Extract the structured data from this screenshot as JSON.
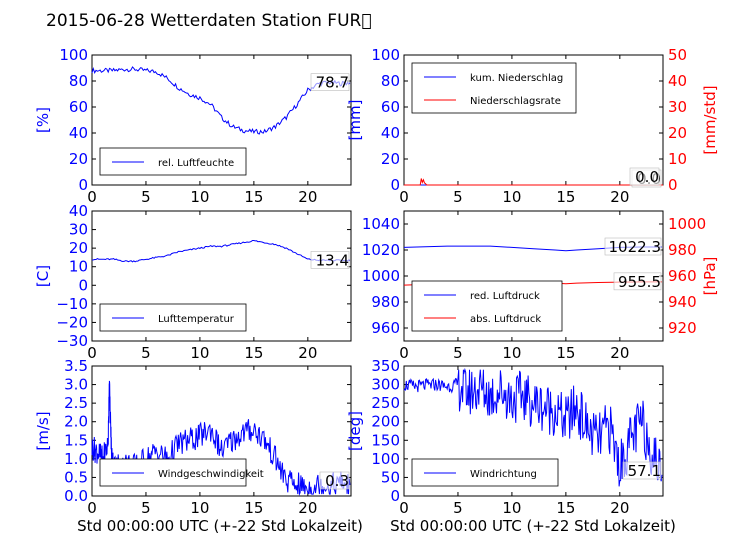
{
  "figure": {
    "title": "2015-06-28 Wetterdaten Station FUR\u0000"
  },
  "chart_data": [
    {
      "id": "humidity",
      "type": "line",
      "ylabel": "[%]",
      "xlim": [
        0,
        24
      ],
      "ylim": [
        0,
        100
      ],
      "xticks": [
        "0",
        "5",
        "10",
        "15",
        "20"
      ],
      "yticks": [
        "0",
        "20",
        "40",
        "60",
        "80",
        "100"
      ],
      "legend": {
        "position": "lower-left",
        "entries": [
          "rel. Luftfeuchte"
        ]
      },
      "annotation": "78.7",
      "series": [
        {
          "name": "rel. Luftfeuchte",
          "color": "#0000ff",
          "x": [
            0,
            1,
            2,
            3,
            4,
            5,
            6,
            7,
            8,
            9,
            10,
            11,
            12,
            13,
            14,
            15,
            16,
            17,
            18,
            19,
            20,
            21,
            22,
            23,
            23.9
          ],
          "y": [
            88,
            88,
            88,
            89,
            89,
            88,
            87,
            82,
            75,
            70,
            67,
            62,
            52,
            45,
            42,
            41,
            41,
            45,
            52,
            62,
            73,
            78,
            79,
            78,
            78.7
          ]
        }
      ]
    },
    {
      "id": "precipitation",
      "type": "line",
      "ylabel": "[mm]",
      "ylabel_right": "[mm/std]",
      "xlim": [
        0,
        24
      ],
      "ylim": [
        0,
        100
      ],
      "ylim_right": [
        0,
        50
      ],
      "xticks": [
        "0",
        "5",
        "10",
        "15",
        "20"
      ],
      "yticks": [
        "0",
        "20",
        "40",
        "60",
        "80",
        "100"
      ],
      "yticks_right": [
        "0",
        "10",
        "20",
        "30",
        "40",
        "50"
      ],
      "legend": {
        "position": "upper-left",
        "entries": [
          "kum. Niederschlag",
          "Niederschlagsrate"
        ]
      },
      "annotations": [
        "0.0",
        "0.0"
      ],
      "series": [
        {
          "name": "kum. Niederschlag",
          "color": "#0000ff",
          "axis": "left",
          "x": [
            0,
            24
          ],
          "y": [
            0,
            0
          ]
        },
        {
          "name": "Niederschlagsrate",
          "color": "#ff0000",
          "axis": "right",
          "x": [
            0,
            1.5,
            1.6,
            1.7,
            1.8,
            1.9,
            2.0,
            2.1,
            24
          ],
          "y": [
            0,
            0,
            2.5,
            1.0,
            2.0,
            0.8,
            0.5,
            0,
            0
          ]
        }
      ]
    },
    {
      "id": "temperature",
      "type": "line",
      "ylabel": "[C]",
      "xlim": [
        0,
        24
      ],
      "ylim": [
        -30,
        40
      ],
      "xticks": [
        "0",
        "5",
        "10",
        "15",
        "20"
      ],
      "yticks": [
        "−30",
        "−20",
        "−10",
        "0",
        "10",
        "20",
        "30",
        "40"
      ],
      "legend": {
        "position": "lower-left",
        "entries": [
          "Lufttemperatur"
        ]
      },
      "annotation": "13.4",
      "series": [
        {
          "name": "Lufttemperatur",
          "color": "#0000ff",
          "x": [
            0,
            1,
            2,
            3,
            4,
            5,
            6,
            7,
            8,
            9,
            10,
            11,
            12,
            13,
            14,
            15,
            16,
            17,
            18,
            19,
            20,
            21,
            22,
            23,
            23.9
          ],
          "y": [
            14,
            14,
            14,
            13,
            13,
            14,
            15,
            16,
            18,
            19,
            20,
            21,
            21,
            22,
            23,
            24,
            23,
            22,
            20,
            17,
            14,
            13.5,
            13.4,
            13.4,
            13.4
          ]
        }
      ]
    },
    {
      "id": "pressure",
      "type": "line",
      "ylabel_right": "[hPa]",
      "xlim": [
        0,
        24
      ],
      "ylim": [
        950,
        1050
      ],
      "ylim_right": [
        910,
        1010
      ],
      "xticks": [
        "0",
        "5",
        "10",
        "15",
        "20"
      ],
      "yticks": [
        "960",
        "980",
        "1000",
        "1020",
        "1040"
      ],
      "yticks_right": [
        "920",
        "940",
        "960",
        "980",
        "1000"
      ],
      "legend": {
        "position": "lower-left",
        "entries": [
          "red. Luftdruck",
          "abs. Luftdruck"
        ]
      },
      "annotations": [
        "1022.3",
        "955.5"
      ],
      "series": [
        {
          "name": "red. Luftdruck",
          "color": "#0000ff",
          "axis": "left",
          "x": [
            0,
            2,
            4,
            6,
            8,
            10,
            12,
            14,
            15,
            16,
            18,
            20,
            22,
            23.9
          ],
          "y": [
            1022,
            1022.5,
            1023,
            1023,
            1023,
            1022,
            1021,
            1020,
            1019.5,
            1020,
            1021,
            1022,
            1022.3,
            1022.3
          ]
        },
        {
          "name": "abs. Luftdruck",
          "color": "#ff0000",
          "axis": "right",
          "x": [
            0,
            2,
            4,
            6,
            8,
            10,
            12,
            14,
            15,
            16,
            18,
            20,
            22,
            23.9
          ],
          "y": [
            953,
            953.5,
            954,
            954.5,
            955,
            955,
            955,
            954.5,
            954,
            954.5,
            955,
            955.3,
            955.5,
            955.5
          ]
        }
      ]
    },
    {
      "id": "windspeed",
      "type": "line",
      "ylabel": "[m/s]",
      "xlim": [
        0,
        24
      ],
      "ylim": [
        0,
        3.5
      ],
      "xticks": [
        "0",
        "5",
        "10",
        "15",
        "20"
      ],
      "yticks": [
        "0.0",
        "0.5",
        "1.0",
        "1.5",
        "2.0",
        "2.5",
        "3.0",
        "3.5"
      ],
      "legend": {
        "position": "lower-left",
        "entries": [
          "Windgeschwindigkeit"
        ]
      },
      "annotation": "0.3",
      "series": [
        {
          "name": "Windgeschwindigkeit",
          "color": "#0000ff",
          "x": [
            0,
            0.5,
            1.0,
            1.5,
            1.6,
            1.8,
            2.0,
            3,
            4,
            5,
            6,
            7,
            8,
            9,
            10,
            11,
            12,
            13,
            14,
            15,
            16,
            17,
            18,
            19,
            20,
            21,
            22,
            23,
            23.9
          ],
          "y": [
            1.3,
            1.2,
            1.0,
            1.4,
            3.1,
            1.2,
            0.8,
            0.9,
            0.8,
            1.0,
            1.2,
            1.0,
            1.4,
            1.5,
            1.6,
            1.8,
            1.2,
            1.5,
            1.7,
            1.8,
            1.5,
            1.0,
            0.4,
            0.3,
            0.2,
            0.3,
            0.3,
            0.35,
            0.3
          ]
        }
      ]
    },
    {
      "id": "winddirection",
      "type": "line",
      "ylabel": "[deg]",
      "xlim": [
        0,
        24
      ],
      "ylim": [
        0,
        350
      ],
      "xticks": [
        "0",
        "5",
        "10",
        "15",
        "20"
      ],
      "yticks": [
        "0",
        "50",
        "100",
        "150",
        "200",
        "250",
        "300",
        "350"
      ],
      "legend": {
        "position": "lower-left",
        "entries": [
          "Windrichtung"
        ]
      },
      "annotation": "57.1",
      "series": [
        {
          "name": "Windrichtung",
          "color": "#0000ff",
          "x": [
            0,
            1,
            2,
            3,
            4,
            5,
            6,
            7,
            8,
            9,
            10,
            11,
            12,
            13,
            14,
            15,
            16,
            17,
            18,
            19,
            20,
            21,
            22,
            23,
            23.9
          ],
          "y": [
            300,
            295,
            298,
            300,
            295,
            300,
            280,
            290,
            270,
            285,
            260,
            270,
            250,
            240,
            230,
            200,
            240,
            180,
            150,
            190,
            80,
            150,
            200,
            120,
            57.1
          ]
        }
      ]
    }
  ],
  "xlabel": "Std 00:00:00 UTC (+-22 Std Lokalzeit)"
}
